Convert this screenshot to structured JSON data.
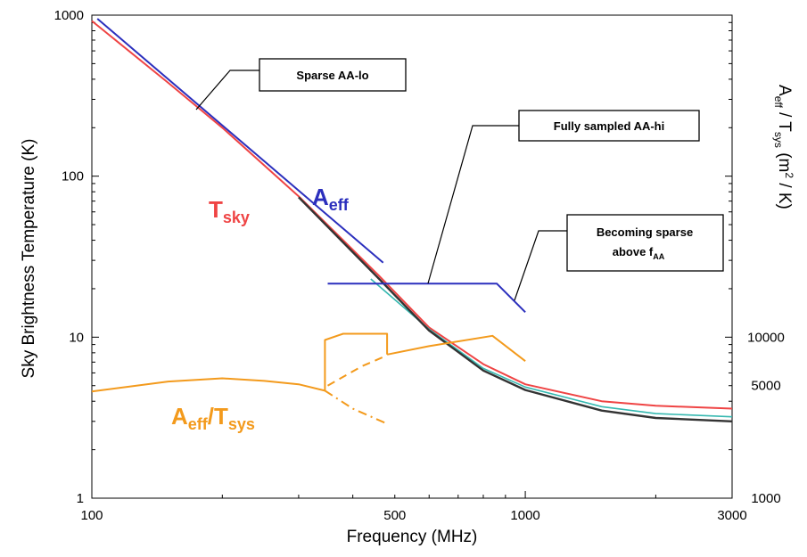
{
  "chart_data": {
    "type": "line",
    "title": "",
    "xlabel": "Frequency (MHz)",
    "ylabel": "Sky Brightness Temperature (K)",
    "y2label": {
      "main": "A",
      "sub1": "eff",
      "mid": " / T",
      "sub2": "sys",
      "unit": "  (m",
      "sup": "2",
      "unit_end": " / K)"
    },
    "xscale": "log",
    "yscale": "log",
    "xlim": [
      100,
      3000
    ],
    "ylim": [
      1,
      1000
    ],
    "y2lim": [
      1000,
      1000000
    ],
    "grid": false,
    "x_ticks": [
      {
        "value": 100,
        "label": "100"
      },
      {
        "value": 500,
        "label": "500"
      },
      {
        "value": 1000,
        "label": "1000"
      },
      {
        "value": 3000,
        "label": "3000"
      }
    ],
    "y_ticks": [
      {
        "value": 1,
        "label": "1"
      },
      {
        "value": 10,
        "label": "10"
      },
      {
        "value": 100,
        "label": "100"
      },
      {
        "value": 1000,
        "label": "1000"
      }
    ],
    "y2_ticks": [
      {
        "value": 1000,
        "label": "1000"
      },
      {
        "value": 5000,
        "label": "5000"
      },
      {
        "value": 10000,
        "label": "10000"
      }
    ],
    "colors": {
      "tsky": "#ef4444",
      "aeff": "#2b2fbd",
      "ratio": "#f39a1c",
      "dark": "#333333",
      "cyan": "#35b8b0"
    },
    "series": [
      {
        "key": "tsky",
        "style": "solid",
        "points": [
          [
            100,
            920
          ],
          [
            150,
            380
          ],
          [
            200,
            200
          ],
          [
            300,
            75
          ],
          [
            460,
            24
          ],
          [
            600,
            11.5
          ],
          [
            800,
            6.8
          ],
          [
            1000,
            5.1
          ],
          [
            1500,
            4.0
          ],
          [
            2000,
            3.75
          ],
          [
            3000,
            3.6
          ]
        ]
      },
      {
        "key": "cyan",
        "style": "solid",
        "points": [
          [
            440,
            23
          ],
          [
            600,
            11.2
          ],
          [
            800,
            6.4
          ],
          [
            1000,
            4.9
          ],
          [
            1500,
            3.7
          ],
          [
            2000,
            3.35
          ],
          [
            3000,
            3.2
          ]
        ]
      },
      {
        "key": "dark",
        "style": "solid",
        "points": [
          [
            300,
            74
          ],
          [
            460,
            23
          ],
          [
            600,
            11
          ],
          [
            800,
            6.2
          ],
          [
            1000,
            4.7
          ],
          [
            1500,
            3.5
          ],
          [
            2000,
            3.15
          ],
          [
            3000,
            3.0
          ]
        ]
      },
      {
        "key": "aeff",
        "style": "solid",
        "points": [
          [
            103,
            950
          ],
          [
            470,
            29
          ]
        ]
      },
      {
        "key": "aeff",
        "style": "solid",
        "points": [
          [
            350,
            21.5
          ],
          [
            860,
            21.5
          ],
          [
            1000,
            14.3
          ]
        ]
      },
      {
        "key": "ratio",
        "style": "solid",
        "points": [
          [
            100,
            4.6
          ],
          [
            150,
            5.3
          ],
          [
            200,
            5.55
          ],
          [
            250,
            5.35
          ],
          [
            300,
            5.1
          ],
          [
            345,
            4.65
          ]
        ]
      },
      {
        "key": "ratio",
        "style": "dashdot",
        "points": [
          [
            345,
            4.65
          ],
          [
            400,
            3.6
          ],
          [
            480,
            2.9
          ]
        ]
      },
      {
        "key": "ratio",
        "style": "solid",
        "points": [
          [
            345,
            4.65
          ],
          [
            345,
            9.6
          ],
          [
            380,
            10.5
          ],
          [
            480,
            10.5
          ],
          [
            480,
            7.8
          ]
        ]
      },
      {
        "key": "ratio",
        "style": "dashed",
        "points": [
          [
            350,
            5.0
          ],
          [
            420,
            6.6
          ],
          [
            480,
            7.7
          ]
        ]
      },
      {
        "key": "ratio",
        "style": "solid",
        "points": [
          [
            480,
            7.8
          ],
          [
            600,
            8.8
          ],
          [
            840,
            10.2
          ],
          [
            1000,
            7.1
          ]
        ]
      }
    ],
    "annotations": {
      "tsky": {
        "main": "T",
        "sub": "sky"
      },
      "aeff": {
        "main": "A",
        "sub": "eff"
      },
      "ratio": {
        "main": "A",
        "sub1": "eff",
        "mid": "/T",
        "sub2": "sys"
      },
      "callout1": "Sparse AA-lo",
      "callout2": "Fully sampled AA-hi",
      "callout3_line1": "Becoming sparse",
      "callout3_line2": "above f",
      "callout3_sub": "AA"
    }
  }
}
